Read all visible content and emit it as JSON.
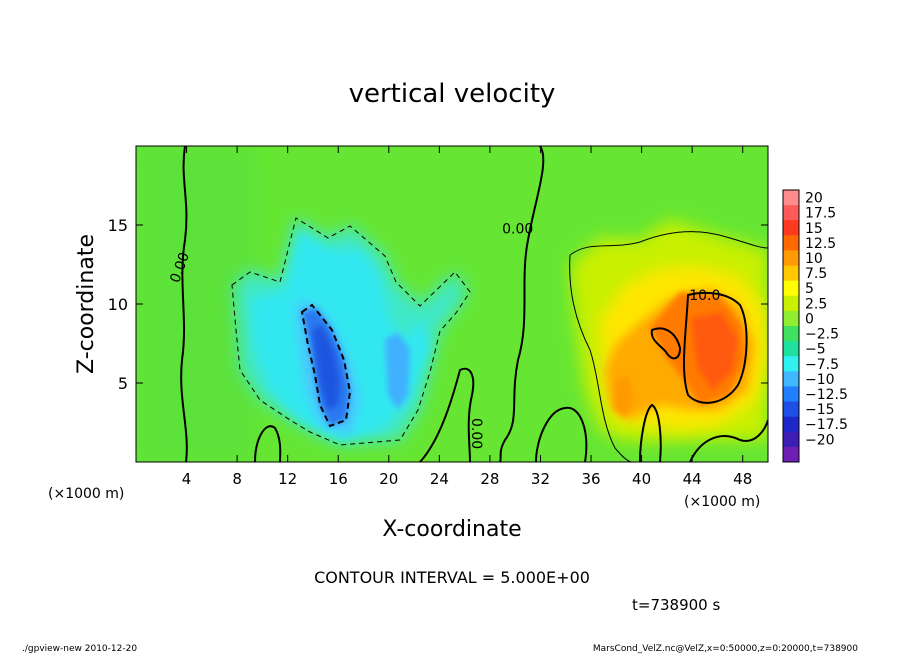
{
  "chart_data": {
    "type": "heatmap",
    "title": "vertical velocity",
    "xlabel": "X-coordinate",
    "ylabel": "Z-coordinate",
    "x_unit_label": "(×1000 m)",
    "y_unit_label": "(×1000 m)",
    "xlim": [
      0,
      50
    ],
    "ylim": [
      0,
      20
    ],
    "x_ticks": [
      4,
      8,
      12,
      16,
      20,
      24,
      28,
      32,
      36,
      40,
      44,
      48
    ],
    "x_tick_labels": [
      "4",
      "8",
      "12",
      "16",
      "20",
      "24",
      "28",
      "32",
      "36",
      "40",
      "44",
      "48"
    ],
    "y_ticks": [
      5,
      10,
      15
    ],
    "y_tick_labels": [
      "5",
      "10",
      "15"
    ],
    "colorbar": {
      "levels": [
        20,
        17.5,
        15,
        12.5,
        10,
        7.5,
        5,
        2.5,
        0,
        -2.5,
        -5,
        -7.5,
        -10,
        -12.5,
        -15,
        -17.5,
        -20
      ],
      "labels": [
        "20",
        "17.5",
        "15",
        "12.5",
        "10",
        "7.5",
        "5",
        "2.5",
        "0",
        "−2.5",
        "−5",
        "−7.5",
        "−10",
        "−12.5",
        "−15",
        "−17.5",
        "−20"
      ],
      "colors": [
        "#ff8c8c",
        "#ff5a5a",
        "#ff3a20",
        "#ff6a00",
        "#ff9a00",
        "#ffc800",
        "#ffff00",
        "#c8f000",
        "#90ee30",
        "#40e060",
        "#20e0a0",
        "#30f0f0",
        "#40b8ff",
        "#2080ff",
        "#1e50e6",
        "#1e28c8",
        "#3c1eb4",
        "#6e1eb4"
      ]
    },
    "contour_labels": [
      {
        "text": "0.00",
        "x": 3.5,
        "z": 12.3,
        "rotate": -70
      },
      {
        "text": "0.00",
        "x": 30.2,
        "z": 14.7,
        "rotate": 0
      },
      {
        "text": "0.00",
        "x": 26.9,
        "z": 1.8,
        "rotate": 90
      },
      {
        "text": "10.0",
        "x": 45.0,
        "z": 10.5,
        "rotate": 0
      }
    ],
    "features": [
      {
        "name": "downdraft-core",
        "x_range": [
          13,
          17
        ],
        "z_range": [
          1,
          10
        ],
        "min_value": -12.5
      },
      {
        "name": "downdraft-region",
        "x_range": [
          8,
          26
        ],
        "z_range": [
          1,
          15.5
        ],
        "min_value": -7.5
      },
      {
        "name": "updraft-core",
        "x_range": [
          41,
          49
        ],
        "z_range": [
          3,
          11
        ],
        "max_value": 12.5
      },
      {
        "name": "updraft-region",
        "x_range": [
          34,
          50
        ],
        "z_range": [
          1,
          14.5
        ],
        "max_value": 7.5
      }
    ],
    "contour_interval_text": "CONTOUR INTERVAL = 5.000E+00",
    "time_text": "t=738900 s"
  },
  "footer": {
    "left": "./gpview-new  2010-12-20",
    "right": "MarsCond_VelZ.nc@VelZ,x=0:50000,z=0:20000,t=738900"
  }
}
